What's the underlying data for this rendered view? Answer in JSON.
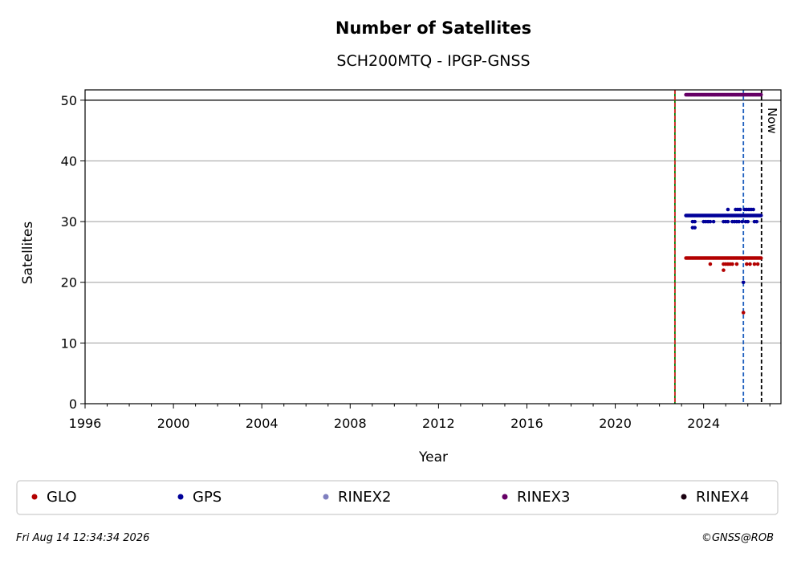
{
  "chart_data": {
    "type": "scatter",
    "title": "Number of Satellites",
    "subtitle": "SCH200MTQ - IPGP-GNSS",
    "xlabel": "Year",
    "ylabel": "Satellites",
    "xlim": [
      1996,
      2027.5
    ],
    "ylim": [
      0,
      51.7
    ],
    "x_ticks": [
      1996,
      2000,
      2004,
      2008,
      2012,
      2016,
      2020,
      2024
    ],
    "y_ticks": [
      0,
      10,
      20,
      30,
      40,
      50
    ],
    "grid": "horizontal",
    "reference_line_y": 50,
    "vertical_lines": [
      {
        "x": 2022.7,
        "color": "#008000",
        "style": "solid"
      },
      {
        "x": 2022.7,
        "color": "#d62728",
        "style": "dashed"
      },
      {
        "x": 2025.8,
        "color": "#1f5fbf",
        "style": "dashed"
      },
      {
        "x": 2026.62,
        "color": "#000000",
        "style": "dashed",
        "label": "Now"
      }
    ],
    "series": [
      {
        "name": "GLO",
        "color": "#b30000",
        "runs": [
          {
            "from": 2023.2,
            "to": 2026.6,
            "y": 24
          }
        ],
        "points": [
          [
            2024.3,
            23
          ],
          [
            2024.9,
            23
          ],
          [
            2025.0,
            23
          ],
          [
            2025.1,
            23
          ],
          [
            2025.2,
            23
          ],
          [
            2025.3,
            23
          ],
          [
            2025.5,
            23
          ],
          [
            2024.9,
            22
          ],
          [
            2025.8,
            15
          ],
          [
            2025.95,
            23
          ],
          [
            2026.1,
            23
          ],
          [
            2026.3,
            23
          ],
          [
            2026.45,
            23
          ]
        ]
      },
      {
        "name": "GPS",
        "color": "#000099",
        "runs": [
          {
            "from": 2023.2,
            "to": 2026.6,
            "y": 31
          }
        ],
        "points": [
          [
            2023.5,
            30
          ],
          [
            2023.6,
            30
          ],
          [
            2023.5,
            29
          ],
          [
            2023.6,
            29
          ],
          [
            2024.0,
            30
          ],
          [
            2024.1,
            30
          ],
          [
            2024.2,
            30
          ],
          [
            2024.3,
            30
          ],
          [
            2024.45,
            30
          ],
          [
            2024.9,
            30
          ],
          [
            2025.0,
            30
          ],
          [
            2025.1,
            30
          ],
          [
            2025.3,
            30
          ],
          [
            2025.4,
            30
          ],
          [
            2025.5,
            30
          ],
          [
            2025.6,
            30
          ],
          [
            2025.75,
            30
          ],
          [
            2025.9,
            30
          ],
          [
            2026.0,
            30
          ],
          [
            2026.3,
            30
          ],
          [
            2026.4,
            30
          ],
          [
            2025.1,
            32
          ],
          [
            2025.45,
            32
          ],
          [
            2025.55,
            32
          ],
          [
            2025.65,
            32
          ],
          [
            2025.85,
            32
          ],
          [
            2025.95,
            32
          ],
          [
            2026.05,
            32
          ],
          [
            2026.15,
            32
          ],
          [
            2026.25,
            32
          ],
          [
            2025.8,
            20
          ]
        ]
      },
      {
        "name": "RINEX2",
        "color": "#7f7fbf",
        "runs": [],
        "points": []
      },
      {
        "name": "RINEX3",
        "color": "#660066",
        "runs": [
          {
            "from": 2023.2,
            "to": 2026.6,
            "y": 50.9
          }
        ],
        "points": []
      },
      {
        "name": "RINEX4",
        "color": "#1a0010",
        "runs": [],
        "points": []
      }
    ],
    "legend": {
      "placement": "bottom",
      "entries": [
        "GLO",
        "GPS",
        "RINEX2",
        "RINEX3",
        "RINEX4"
      ]
    }
  },
  "footer": {
    "timestamp": "Fri Aug 14 12:34:34 2026",
    "copyright": "©GNSS@ROB"
  }
}
